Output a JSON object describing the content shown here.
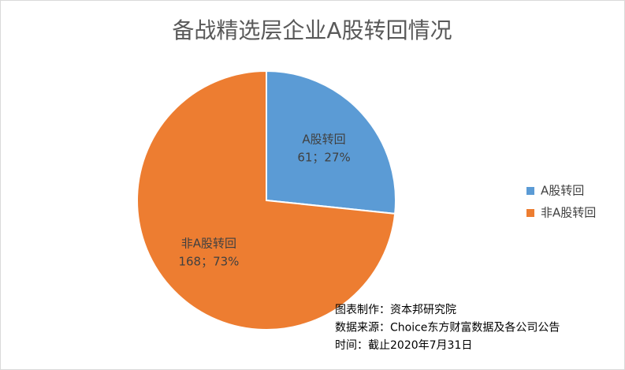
{
  "chart_data": {
    "type": "pie",
    "title": "备战精选层企业A股转回情况",
    "categories": [
      "A股转回",
      "非A股转回"
    ],
    "values": [
      61,
      168
    ],
    "value_labels": [
      "61；27%",
      "168；73%"
    ],
    "colors": [
      "#5b9bd5",
      "#ed7d31"
    ],
    "legend": "right",
    "annotations": [
      "图表制作：资本邦研究院",
      "数据来源：Choice东方财富数据及各公司公告",
      "时间：截止2020年7月31日"
    ]
  }
}
